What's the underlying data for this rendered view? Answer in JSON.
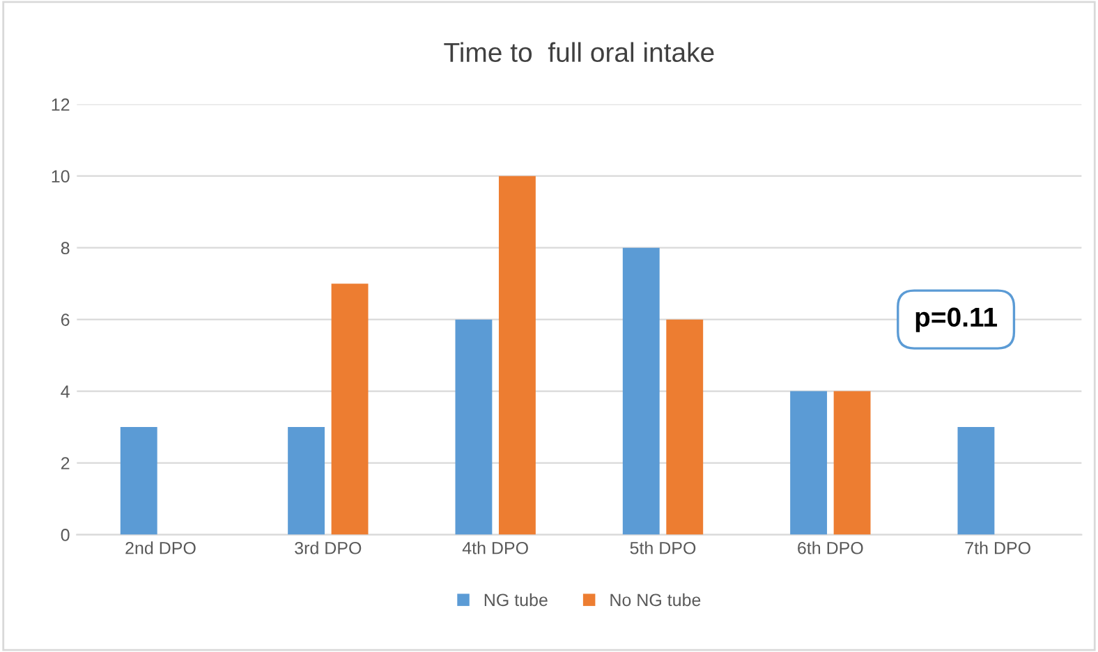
{
  "chart_data": {
    "type": "bar",
    "title": "Time to  full oral intake",
    "categories": [
      "2nd DPO",
      "3rd DPO",
      "4th DPO",
      "5th DPO",
      "6th DPO",
      "7th DPO"
    ],
    "series": [
      {
        "name": "NG tube",
        "color": "#5b9bd5",
        "values": [
          3,
          3,
          6,
          8,
          4,
          3
        ]
      },
      {
        "name": "No NG tube",
        "color": "#ed7d31",
        "values": [
          0,
          7,
          10,
          6,
          4,
          0
        ]
      }
    ],
    "ylim": [
      0,
      12
    ],
    "yticks": [
      0,
      2,
      4,
      6,
      8,
      10,
      12
    ],
    "grid": "y",
    "legend": "bottom",
    "annotations": [
      "p=0.11"
    ]
  }
}
